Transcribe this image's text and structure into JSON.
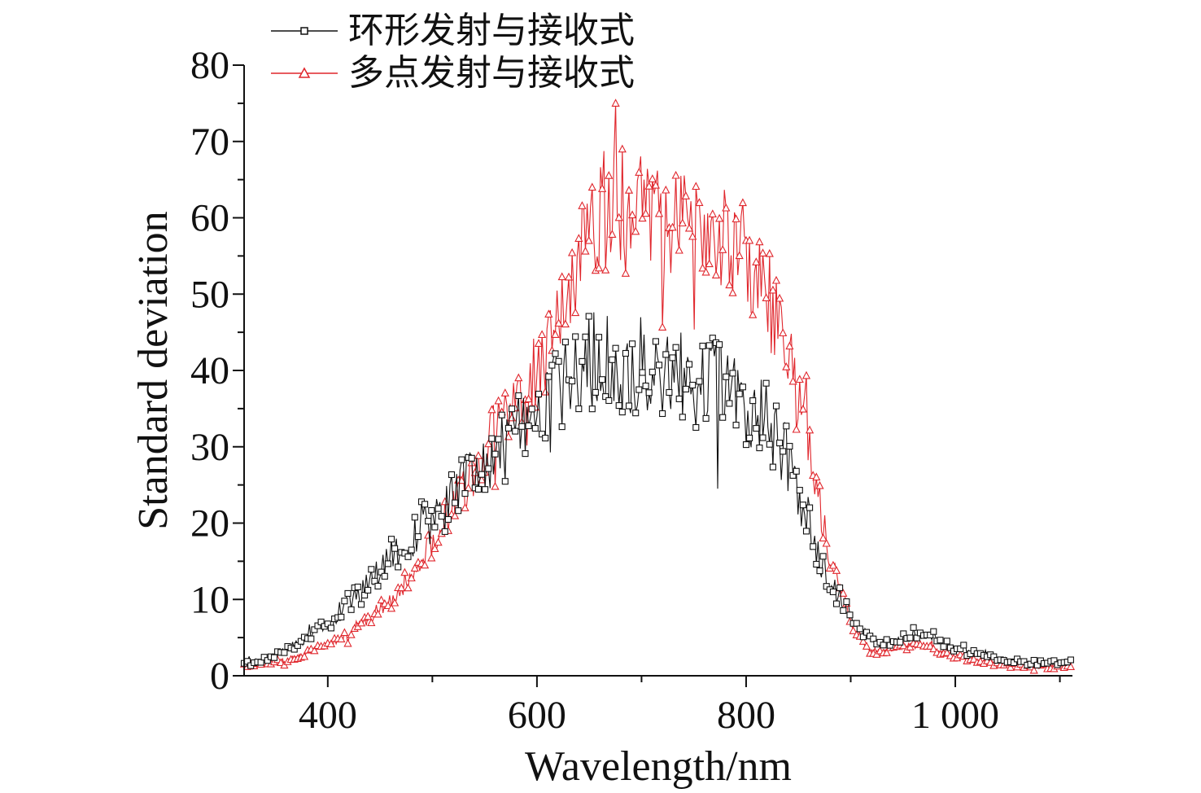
{
  "chart_data": {
    "type": "line",
    "title": "",
    "xlabel": "Wavelength/nm",
    "ylabel": "Standard deviation",
    "xlim": [
      320,
      1112
    ],
    "ylim": [
      0,
      80
    ],
    "x_ticks": [
      400,
      600,
      800,
      1000
    ],
    "x_tick_labels": [
      "400",
      "600",
      "800",
      "1 000"
    ],
    "y_ticks": [
      0,
      10,
      20,
      30,
      40,
      50,
      60,
      70,
      80
    ],
    "y_tick_labels": [
      "0",
      "10",
      "20",
      "30",
      "40",
      "50",
      "60",
      "70",
      "80"
    ],
    "grid": false,
    "legend_position": "top-left",
    "x": [
      320,
      340,
      360,
      380,
      400,
      420,
      440,
      460,
      480,
      500,
      520,
      540,
      560,
      580,
      600,
      620,
      640,
      660,
      680,
      700,
      720,
      740,
      760,
      780,
      800,
      820,
      840,
      860,
      880,
      900,
      920,
      940,
      960,
      980,
      1000,
      1020,
      1040,
      1060,
      1080,
      1100,
      1112
    ],
    "series": [
      {
        "name": "环形发射与接收式",
        "color": "#111111",
        "marker": "square",
        "values": [
          1.5,
          2.2,
          3.5,
          5.0,
          6.8,
          9.5,
          12.0,
          15.0,
          18.0,
          20.5,
          23.5,
          26.0,
          29.0,
          31.5,
          34.0,
          37.0,
          39.5,
          42.0,
          41.0,
          40.5,
          39.5,
          39.0,
          38.5,
          38.0,
          36.0,
          33.0,
          28.0,
          20.0,
          12.0,
          8.0,
          4.5,
          4.0,
          5.5,
          5.0,
          3.5,
          2.8,
          2.2,
          1.8,
          1.7,
          1.6,
          1.5
        ]
      },
      {
        "name": "多点发射与接收式",
        "color": "#e0262c",
        "marker": "triangle",
        "values": [
          1.2,
          1.4,
          2.0,
          3.0,
          4.0,
          5.5,
          7.5,
          10.0,
          13.5,
          17.5,
          22.0,
          27.0,
          32.0,
          36.5,
          40.0,
          46.0,
          54.0,
          59.0,
          61.0,
          62.0,
          60.5,
          59.0,
          58.0,
          57.0,
          55.5,
          50.0,
          42.0,
          31.0,
          15.0,
          7.0,
          3.0,
          3.5,
          4.0,
          3.5,
          2.5,
          2.0,
          1.6,
          1.4,
          1.3,
          1.2,
          1.2
        ]
      }
    ]
  }
}
